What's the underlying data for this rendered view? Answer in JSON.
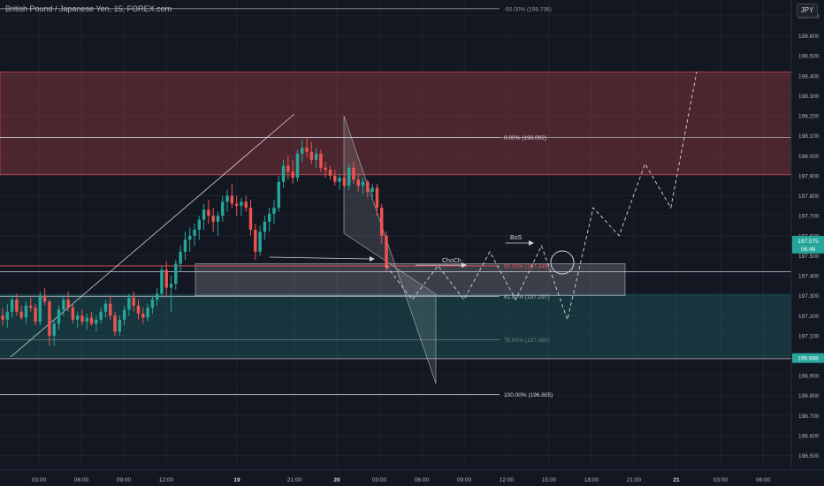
{
  "header": {
    "title": "British Pound / Japanese Yen, 15, FOREX.com",
    "currency": "JPY"
  },
  "colors": {
    "background": "#131722",
    "up": "#26a69a",
    "down": "#ef5350",
    "supply_zone": "#ef5350",
    "demand_zone": "#26a69a"
  },
  "chart_data": {
    "type": "candlestick",
    "ylim": [
      196.5,
      198.8
    ],
    "yticks": [
      "198.700",
      "198.600",
      "198.500",
      "198.400",
      "198.300",
      "198.200",
      "198.100",
      "198.000",
      "197.900",
      "197.800",
      "197.700",
      "197.600",
      "197.500",
      "197.400",
      "197.300",
      "197.200",
      "197.100",
      "197.000",
      "196.900",
      "196.800",
      "196.700",
      "196.600",
      "196.500"
    ],
    "xticks": [
      "03:00",
      "06:00",
      "09:00",
      "12:00",
      "19",
      "21:00",
      "20",
      "03:00",
      "06:00",
      "09:00",
      "12:00",
      "15:00",
      "18:00",
      "21:00",
      "21",
      "03:00",
      "06:00"
    ],
    "price_labels": [
      {
        "text": "197.575",
        "subtext": "06:48",
        "value": 197.575,
        "color": "#26a69a"
      },
      {
        "text": "196.988",
        "value": 196.988,
        "color": "#26a69a"
      }
    ],
    "fib_levels": [
      {
        "label": "-50.00% (198.736)",
        "value": 198.736
      },
      {
        "label": "0.00% (198.092)",
        "value": 198.092
      },
      {
        "label": "50.00% (197.449)",
        "value": 197.449
      },
      {
        "label": "61.80% (197.297)",
        "value": 197.297
      },
      {
        "label": "78.60% (197.080)",
        "value": 197.08
      },
      {
        "label": "100.00% (196.805)",
        "value": 196.805
      }
    ],
    "zones": [
      {
        "kind": "supply",
        "from": 197.905,
        "to": 198.42
      },
      {
        "kind": "demand",
        "from": 196.99,
        "to": 197.31
      },
      {
        "kind": "order-block",
        "from": 197.3,
        "to": 197.46
      }
    ],
    "annotations": [
      "ChoCh",
      "BoS"
    ],
    "candles_ohlc": [
      [
        197.2,
        197.24,
        197.15,
        197.18
      ],
      [
        197.18,
        197.26,
        197.14,
        197.22
      ],
      [
        197.22,
        197.3,
        197.19,
        197.28
      ],
      [
        197.28,
        197.31,
        197.2,
        197.22
      ],
      [
        197.22,
        197.25,
        197.18,
        197.19
      ],
      [
        197.19,
        197.27,
        197.16,
        197.25
      ],
      [
        197.25,
        197.29,
        197.22,
        197.24
      ],
      [
        197.24,
        197.26,
        197.15,
        197.17
      ],
      [
        197.17,
        197.32,
        197.15,
        197.3
      ],
      [
        197.3,
        197.34,
        197.25,
        197.27
      ],
      [
        197.27,
        197.28,
        197.05,
        197.1
      ],
      [
        197.1,
        197.18,
        197.05,
        197.16
      ],
      [
        197.16,
        197.25,
        197.13,
        197.23
      ],
      [
        197.23,
        197.3,
        197.2,
        197.28
      ],
      [
        197.28,
        197.32,
        197.22,
        197.24
      ],
      [
        197.24,
        197.26,
        197.16,
        197.18
      ],
      [
        197.18,
        197.22,
        197.14,
        197.2
      ],
      [
        197.2,
        197.23,
        197.15,
        197.17
      ],
      [
        197.17,
        197.21,
        197.13,
        197.19
      ],
      [
        197.19,
        197.22,
        197.15,
        197.16
      ],
      [
        197.16,
        197.2,
        197.12,
        197.18
      ],
      [
        197.18,
        197.24,
        197.16,
        197.22
      ],
      [
        197.22,
        197.28,
        197.19,
        197.26
      ],
      [
        197.26,
        197.3,
        197.18,
        197.2
      ],
      [
        197.2,
        197.22,
        197.1,
        197.12
      ],
      [
        197.12,
        197.2,
        197.1,
        197.18
      ],
      [
        197.18,
        197.25,
        197.15,
        197.23
      ],
      [
        197.23,
        197.31,
        197.2,
        197.29
      ],
      [
        197.29,
        197.32,
        197.22,
        197.25
      ],
      [
        197.25,
        197.28,
        197.18,
        197.21
      ],
      [
        197.21,
        197.24,
        197.16,
        197.19
      ],
      [
        197.19,
        197.26,
        197.17,
        197.24
      ],
      [
        197.24,
        197.3,
        197.21,
        197.28
      ],
      [
        197.28,
        197.34,
        197.25,
        197.31
      ],
      [
        197.31,
        197.45,
        197.29,
        197.43
      ],
      [
        197.43,
        197.47,
        197.3,
        197.34
      ],
      [
        197.34,
        197.4,
        197.22,
        197.36
      ],
      [
        197.36,
        197.48,
        197.33,
        197.46
      ],
      [
        197.46,
        197.55,
        197.42,
        197.52
      ],
      [
        197.52,
        197.62,
        197.48,
        197.58
      ],
      [
        197.58,
        197.64,
        197.52,
        197.6
      ],
      [
        197.6,
        197.66,
        197.55,
        197.63
      ],
      [
        197.63,
        197.7,
        197.58,
        197.68
      ],
      [
        197.68,
        197.76,
        197.63,
        197.73
      ],
      [
        197.73,
        197.78,
        197.66,
        197.7
      ],
      [
        197.7,
        197.74,
        197.62,
        197.67
      ],
      [
        197.67,
        197.72,
        197.6,
        197.7
      ],
      [
        197.7,
        197.8,
        197.67,
        197.77
      ],
      [
        197.77,
        197.83,
        197.72,
        197.8
      ],
      [
        197.8,
        197.86,
        197.74,
        197.76
      ],
      [
        197.76,
        197.8,
        197.7,
        197.75
      ],
      [
        197.75,
        197.79,
        197.7,
        197.77
      ],
      [
        197.77,
        197.8,
        197.72,
        197.74
      ],
      [
        197.74,
        197.78,
        197.6,
        197.63
      ],
      [
        197.63,
        197.66,
        197.48,
        197.52
      ],
      [
        197.52,
        197.65,
        197.5,
        197.62
      ],
      [
        197.62,
        197.7,
        197.58,
        197.67
      ],
      [
        197.67,
        197.74,
        197.62,
        197.71
      ],
      [
        197.71,
        197.78,
        197.66,
        197.74
      ],
      [
        197.74,
        197.9,
        197.72,
        197.87
      ],
      [
        197.87,
        197.98,
        197.84,
        197.95
      ],
      [
        197.95,
        198.0,
        197.88,
        197.92
      ],
      [
        197.92,
        197.98,
        197.86,
        197.89
      ],
      [
        197.89,
        198.03,
        197.87,
        198.01
      ],
      [
        198.01,
        198.08,
        197.97,
        198.04
      ],
      [
        198.04,
        198.09,
        197.99,
        198.02
      ],
      [
        198.02,
        198.07,
        197.96,
        197.98
      ],
      [
        197.98,
        198.04,
        197.94,
        198.01
      ],
      [
        198.01,
        198.03,
        197.92,
        197.94
      ],
      [
        197.94,
        197.97,
        197.89,
        197.93
      ],
      [
        197.93,
        197.95,
        197.88,
        197.9
      ],
      [
        197.9,
        197.93,
        197.85,
        197.87
      ],
      [
        197.87,
        197.91,
        197.83,
        197.89
      ],
      [
        197.89,
        197.92,
        197.84,
        197.85
      ],
      [
        197.85,
        197.96,
        197.83,
        197.94
      ],
      [
        197.94,
        197.97,
        197.86,
        197.88
      ],
      [
        197.88,
        197.91,
        197.82,
        197.85
      ],
      [
        197.85,
        197.89,
        197.81,
        197.87
      ],
      [
        197.87,
        197.88,
        197.79,
        197.82
      ],
      [
        197.82,
        197.86,
        197.78,
        197.84
      ],
      [
        197.84,
        197.86,
        197.7,
        197.74
      ],
      [
        197.74,
        197.76,
        197.56,
        197.6
      ],
      [
        197.6,
        197.62,
        197.42,
        197.44
      ]
    ],
    "projection_path": [
      [
        197.45,
        0
      ],
      [
        197.28,
        1
      ],
      [
        197.45,
        2
      ],
      [
        197.28,
        3
      ],
      [
        197.52,
        4
      ],
      [
        197.28,
        5
      ],
      [
        197.55,
        6
      ],
      [
        197.18,
        7
      ],
      [
        197.74,
        8
      ],
      [
        197.6,
        9
      ],
      [
        197.96,
        10
      ],
      [
        197.74,
        11
      ],
      [
        198.42,
        12
      ]
    ]
  }
}
